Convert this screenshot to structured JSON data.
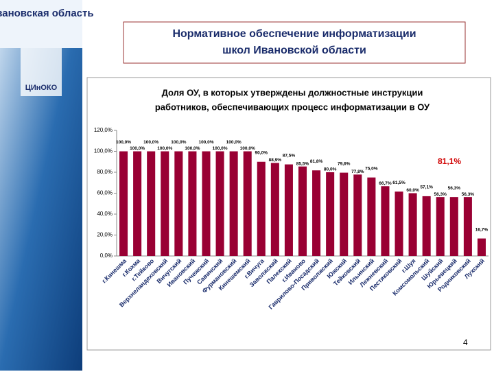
{
  "header": {
    "region": "Ивановская область",
    "logo": "ЦИнОКО",
    "slide_title": "Нормативное обеспечение информатизации школ Ивановской области",
    "page_number": "4"
  },
  "chart_data": {
    "type": "bar",
    "title": "Доля ОУ, в которых утверждены должностные инструкции работников, обеспечивающих процесс информатизации в ОУ",
    "categories": [
      "г.Кинешма",
      "г.Кохма",
      "г.Тейково",
      "Верхнеландеховский",
      "Вичугский",
      "Ивановский",
      "Пучежский",
      "Савинский",
      "Фурмановский",
      "Кинешемский",
      "г.Вичуга",
      "Заволжский",
      "Палехский",
      "г.Иваново",
      "Гаврилово-Посадский",
      "Приволжский",
      "Южский",
      "Тейковский",
      "Ильинский",
      "Лежневский",
      "Пестяковский",
      "г.Шуя",
      "Комсомольский",
      "Шуйский",
      "Юрьевецкий",
      "Родниковский",
      "Лухский"
    ],
    "values": [
      100,
      100,
      100,
      100,
      100,
      100,
      100,
      100,
      100,
      100,
      90,
      88.9,
      87.5,
      85.5,
      81.8,
      80,
      79.6,
      77.8,
      75,
      66.7,
      61.5,
      60,
      57.1,
      56.3,
      56.3,
      56.3,
      16.7
    ],
    "value_labels": [
      "100,0%",
      "100,0%",
      "100,0%",
      "100,0%",
      "100,0%",
      "100,0%",
      "100,0%",
      "100,0%",
      "100,0%",
      "100,0%",
      "90,0%",
      "88,9%",
      "87,5%",
      "85,5%",
      "81,8%",
      "80,0%",
      "79,6%",
      "77,8%",
      "75,0%",
      "66,7%",
      "61,5%",
      "60,0%",
      "57,1%",
      "56,3%",
      "56,3%",
      "56,3%",
      "16,7%"
    ],
    "color": "#990033",
    "ylim": [
      0,
      120
    ],
    "yticks": [
      {
        "value": 0,
        "label": "0,0%"
      },
      {
        "value": 20,
        "label": "20,0%"
      },
      {
        "value": 40,
        "label": "40,0%"
      },
      {
        "value": 60,
        "label": "60,0%"
      },
      {
        "value": 80,
        "label": "80,0%"
      },
      {
        "value": 100,
        "label": "100,0%"
      },
      {
        "value": 120,
        "label": "120,0%"
      }
    ],
    "annotation": "81,1%",
    "annotation_color": "#d00000"
  }
}
